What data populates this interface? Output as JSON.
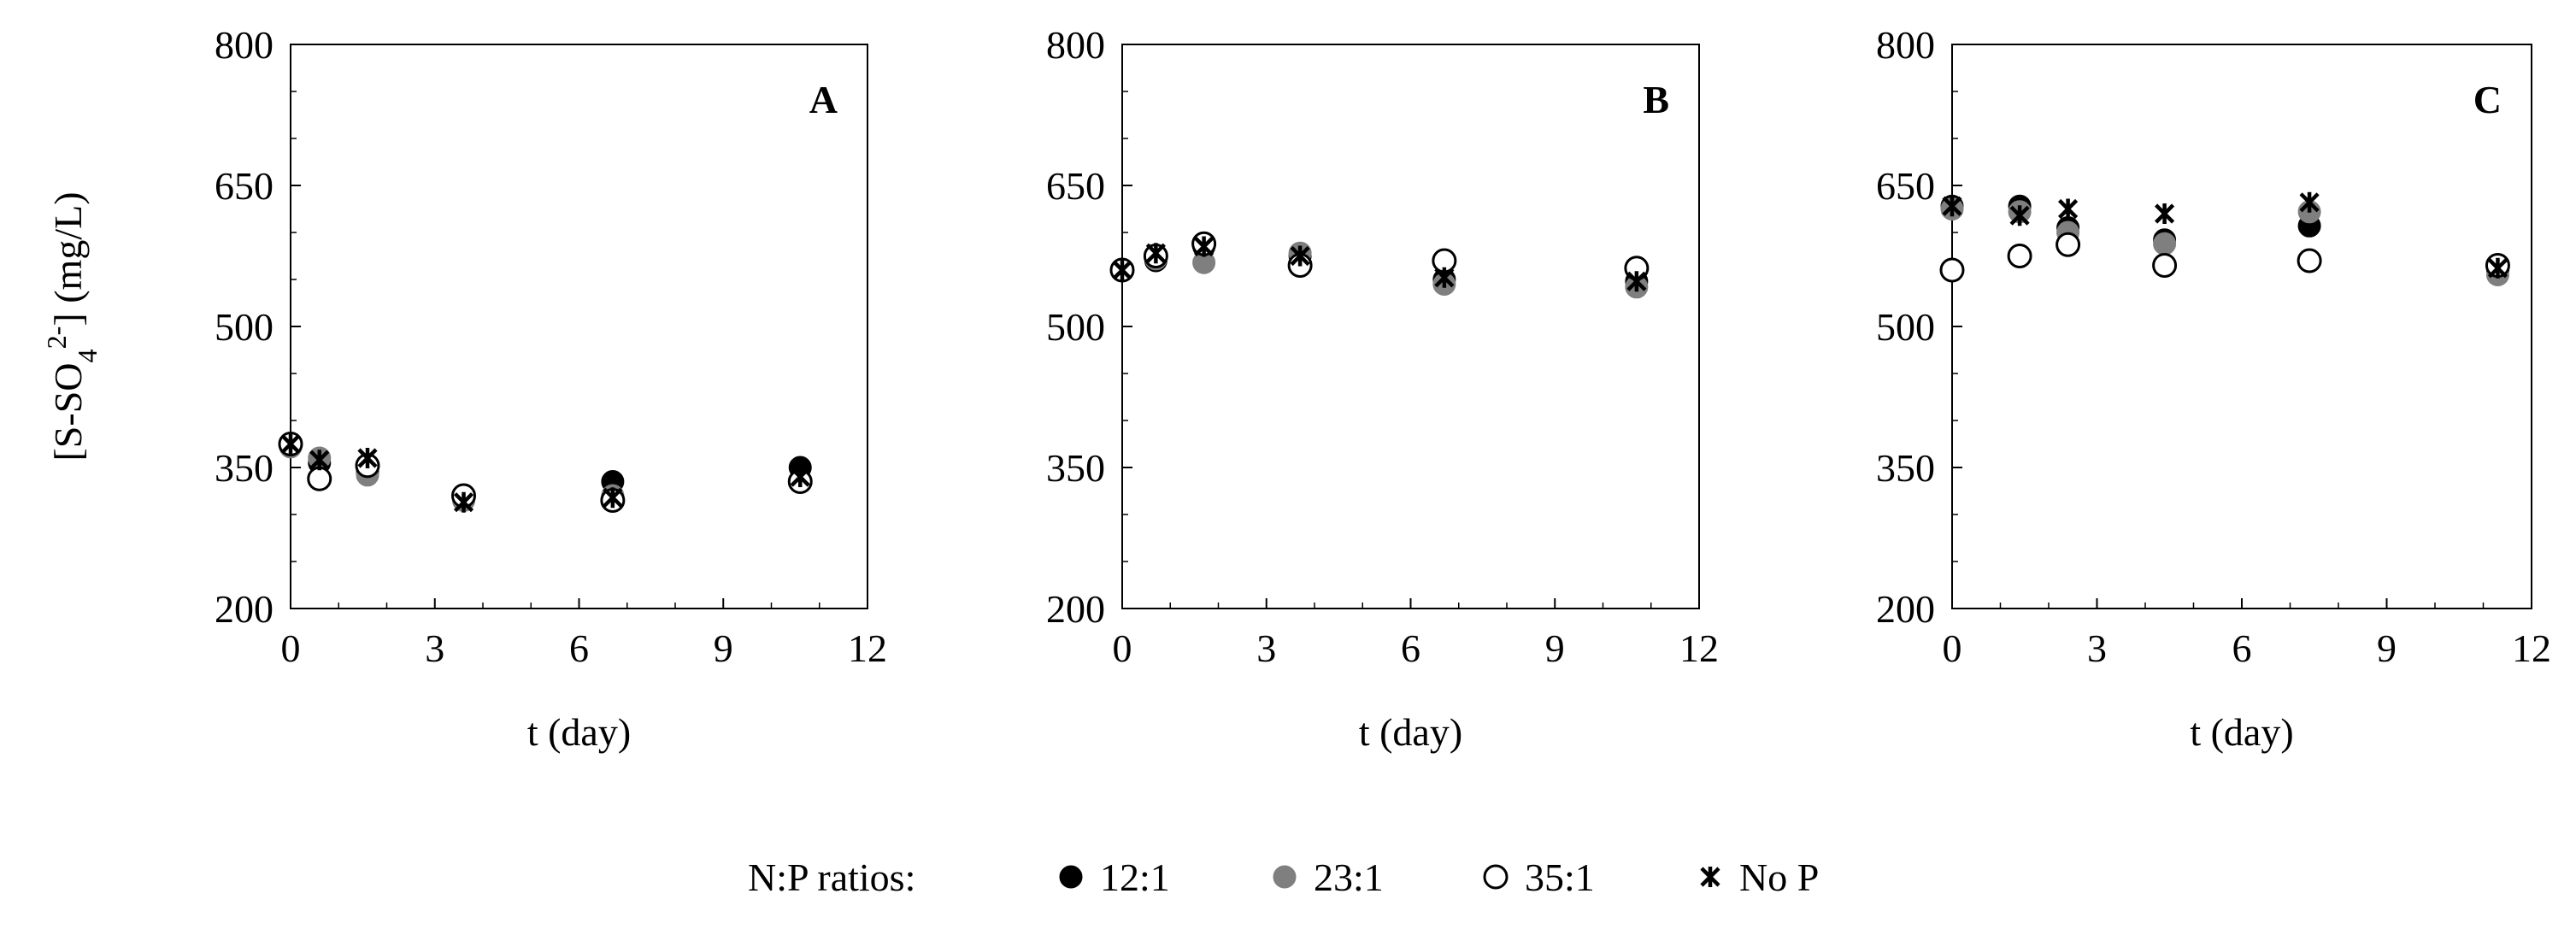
{
  "chart_data": [
    {
      "type": "scatter",
      "panel_label": "A",
      "xlabel": "t (day)",
      "ylabel": {
        "base": "[S-SO",
        "sub": "4",
        "sup": "2-",
        "tail": "] (mg/L)"
      },
      "xlim": [
        0,
        12
      ],
      "ylim": [
        200,
        800
      ],
      "x_ticks": [
        0,
        3,
        6,
        9,
        12
      ],
      "y_ticks": [
        200,
        350,
        500,
        650,
        800
      ],
      "series": [
        {
          "name": "12:1",
          "x": [
            0,
            0.6,
            1.6,
            3.6,
            6.7,
            10.6
          ],
          "y": [
            375,
            355,
            345,
            318,
            335,
            350
          ]
        },
        {
          "name": "23:1",
          "x": [
            0,
            0.6,
            1.6,
            3.6,
            6.7,
            10.6
          ],
          "y": [
            372,
            360,
            342,
            315,
            320,
            335
          ]
        },
        {
          "name": "35:1",
          "x": [
            0,
            0.6,
            1.6,
            3.6,
            6.7,
            10.6
          ],
          "y": [
            375,
            338,
            352,
            320,
            315,
            335
          ]
        },
        {
          "name": "No P",
          "x": [
            0,
            0.6,
            1.6,
            3.6,
            6.7,
            10.6
          ],
          "y": [
            375,
            358,
            360,
            313,
            318,
            340
          ]
        }
      ]
    },
    {
      "type": "scatter",
      "panel_label": "B",
      "xlabel": "t (day)",
      "xlim": [
        0,
        12
      ],
      "ylim": [
        200,
        800
      ],
      "x_ticks": [
        0,
        3,
        6,
        9,
        12
      ],
      "y_ticks": [
        200,
        350,
        500,
        650,
        800
      ],
      "series": [
        {
          "name": "12:1",
          "x": [
            0,
            0.7,
            1.7,
            3.7,
            6.7,
            10.7
          ],
          "y": [
            560,
            570,
            585,
            575,
            550,
            548
          ]
        },
        {
          "name": "23:1",
          "x": [
            0,
            0.7,
            1.7,
            3.7,
            6.7,
            10.7
          ],
          "y": [
            560,
            572,
            568,
            578,
            545,
            542
          ]
        },
        {
          "name": "35:1",
          "x": [
            0,
            0.7,
            1.7,
            3.7,
            6.7,
            10.7
          ],
          "y": [
            560,
            575,
            588,
            565,
            570,
            562
          ]
        },
        {
          "name": "No P",
          "x": [
            0,
            0.7,
            1.7,
            3.7,
            6.7,
            10.7
          ],
          "y": [
            560,
            578,
            585,
            575,
            552,
            548
          ]
        }
      ]
    },
    {
      "type": "scatter",
      "panel_label": "C",
      "xlabel": "t (day)",
      "xlim": [
        0,
        12
      ],
      "ylim": [
        200,
        800
      ],
      "x_ticks": [
        0,
        3,
        6,
        9,
        12
      ],
      "y_ticks": [
        200,
        350,
        500,
        650,
        800
      ],
      "series": [
        {
          "name": "12:1",
          "x": [
            0,
            1.4,
            2.4,
            4.4,
            7.4,
            11.3
          ],
          "y": [
            628,
            628,
            605,
            592,
            607,
            560
          ]
        },
        {
          "name": "23:1",
          "x": [
            0,
            1.4,
            2.4,
            4.4,
            7.4,
            11.3
          ],
          "y": [
            625,
            622,
            600,
            588,
            622,
            555
          ]
        },
        {
          "name": "35:1",
          "x": [
            0,
            1.4,
            2.4,
            4.4,
            7.4,
            11.3
          ],
          "y": [
            560,
            575,
            587,
            565,
            570,
            565
          ]
        },
        {
          "name": "No P",
          "x": [
            0,
            1.4,
            2.4,
            4.4,
            7.4,
            11.3
          ],
          "y": [
            628,
            618,
            625,
            620,
            632,
            562
          ]
        }
      ]
    }
  ],
  "legend": {
    "title": "N:P ratios:",
    "entries": [
      {
        "label": "12:1",
        "marker": "filled-black-circle"
      },
      {
        "label": "23:1",
        "marker": "filled-gray-circle"
      },
      {
        "label": "35:1",
        "marker": "open-circle"
      },
      {
        "label": "No P",
        "marker": "star-cross"
      }
    ]
  },
  "colors": {
    "12:1": "#000000",
    "23:1": "#7f7f7f",
    "35:1": "#ffffff",
    "No P": "#000000"
  }
}
